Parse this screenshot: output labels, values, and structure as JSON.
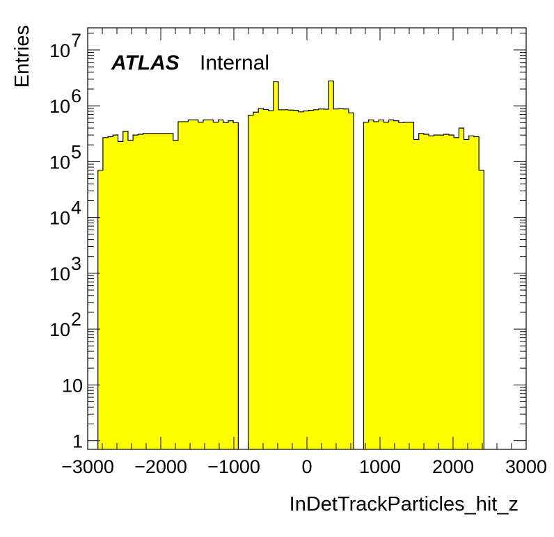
{
  "chart_data": {
    "type": "bar",
    "title": "",
    "xlabel": "InDetTrackParticles_hit_z",
    "ylabel": "Entries",
    "xlim": [
      -3000,
      3000
    ],
    "ylim": [
      0.7,
      25000000
    ],
    "y_scale": "log",
    "x_ticks": [
      {
        "value": -3000,
        "label": "−3000"
      },
      {
        "value": -2000,
        "label": "−2000"
      },
      {
        "value": -1000,
        "label": "−1000"
      },
      {
        "value": 0,
        "label": "0"
      },
      {
        "value": 1000,
        "label": "1000"
      },
      {
        "value": 2000,
        "label": "2000"
      },
      {
        "value": 3000,
        "label": "3000"
      }
    ],
    "y_ticks": [
      {
        "value": 1,
        "base": "1",
        "exp": ""
      },
      {
        "value": 10,
        "base": "10",
        "exp": ""
      },
      {
        "value": 100,
        "base": "10",
        "exp": "2"
      },
      {
        "value": 1000,
        "base": "10",
        "exp": "3"
      },
      {
        "value": 10000,
        "base": "10",
        "exp": "4"
      },
      {
        "value": 100000,
        "base": "10",
        "exp": "5"
      },
      {
        "value": 1000000,
        "base": "10",
        "exp": "6"
      },
      {
        "value": 10000000,
        "base": "10",
        "exp": "7"
      }
    ],
    "bin_edges_start": -2860,
    "bin_width": 68.6,
    "fill_color": "#ffff00",
    "line_color": "#000000",
    "values": [
      70000,
      270000,
      280000,
      300000,
      230000,
      350000,
      240000,
      300000,
      310000,
      320000,
      320000,
      320000,
      320000,
      320000,
      320000,
      240000,
      520000,
      520000,
      560000,
      560000,
      510000,
      560000,
      560000,
      510000,
      560000,
      500000,
      540000,
      500000,
      0,
      0,
      680000,
      770000,
      890000,
      860000,
      820000,
      2700000,
      850000,
      850000,
      840000,
      830000,
      780000,
      810000,
      830000,
      850000,
      880000,
      870000,
      2800000,
      880000,
      890000,
      880000,
      750000,
      0,
      0,
      510000,
      560000,
      520000,
      560000,
      510000,
      560000,
      540000,
      500000,
      510000,
      510000,
      250000,
      320000,
      310000,
      290000,
      300000,
      300000,
      310000,
      300000,
      270000,
      400000,
      250000,
      290000,
      280000,
      70000
    ],
    "annotations": [
      {
        "atlas": "ATLAS",
        "status": "Internal"
      }
    ],
    "legend": "none",
    "grid": false
  }
}
